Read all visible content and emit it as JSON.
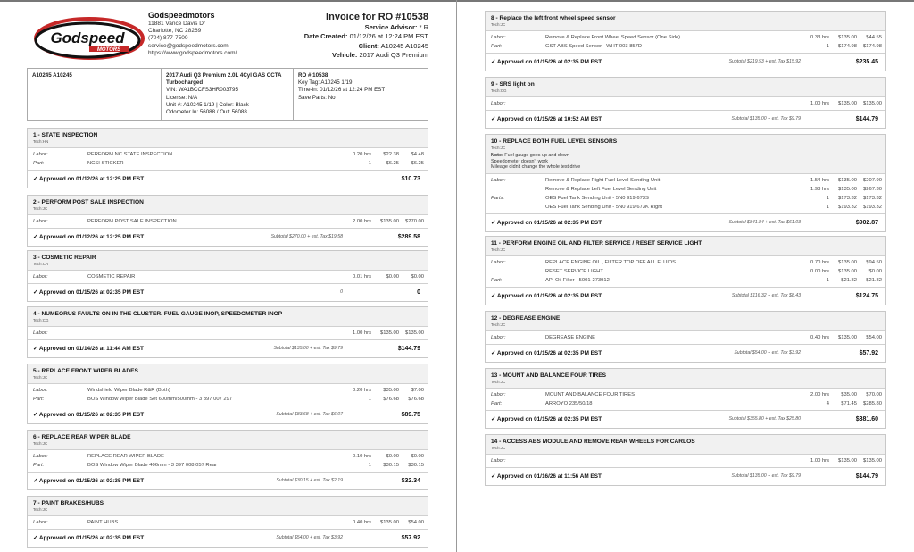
{
  "company": {
    "logo_text": "Godspeed",
    "logo_subtext": "MOTORS",
    "name": "Godspeedmotors",
    "address1": "11881 Vance Davis Dr",
    "address2": "Charlotte, NC 28269",
    "phone": "(704) 877-7500",
    "email": "service@godspeedmotors.com",
    "website": "https://www.godspeedmotors.com/"
  },
  "invoice": {
    "title": "Invoice for RO #10538",
    "advisor_label": "Service Advisor:",
    "advisor": "* R",
    "date_label": "Date Created:",
    "date": "01/12/26 at 12:24 PM EST",
    "client_label": "Client:",
    "client": "A10245 A10245",
    "vehicle_label": "Vehicle:",
    "vehicle": "2017 Audi Q3 Premium"
  },
  "info": {
    "customer": "A10245 A10245",
    "vehicle_title": "2017 Audi Q3 Premium 2.0L 4Cyl GAS CCTA Turbocharged",
    "vin": "VIN: WA1BCCFS3HR003795",
    "license": "License: N/A",
    "unit": "Unit #: A10245 1/19 | Color: Black",
    "odometer": "Odometer In: 56088 / Out: 56088",
    "ro": "RO # 10538",
    "key_tag": "Key Tag: A10245 1/19",
    "time_in": "Time-In: 01/12/26 at 12:24 PM EST",
    "save_parts": "Save Parts: No"
  },
  "jobs": [
    {
      "title": "1 - STATE INSPECTION",
      "tech": "Tech:HN",
      "lines": [
        {
          "label": "Labor:",
          "desc": "PERFORM NC STATE INSPECTION",
          "qty": "0.20 hrs",
          "rate": "$22.38",
          "total": "$4.48"
        },
        {
          "label": "Part:",
          "desc": "NCSI STICKER",
          "qty": "1",
          "rate": "$6.25",
          "total": "$6.25"
        }
      ],
      "approved": "✓ Approved on 01/12/26 at 12:25 PM EST",
      "subtotal": "",
      "grand": "$10.73"
    },
    {
      "title": "2 - PERFORM POST SALE INSPECTION",
      "tech": "Tech:JC",
      "lines": [
        {
          "label": "Labor:",
          "desc": "PERFORM POST SALE INSPECTION",
          "qty": "2.00 hrs",
          "rate": "$135.00",
          "total": "$270.00"
        }
      ],
      "approved": "✓ Approved on 01/12/26 at 12:25 PM EST",
      "subtotal": "Subtotal $270.00 + est. Tax $19.58",
      "grand": "$289.58"
    },
    {
      "title": "3 - COSMETIC REPAIR",
      "tech": "Tech:CR",
      "lines": [
        {
          "label": "Labor:",
          "desc": "COSMETIC REPAIR",
          "qty": "0.01 hrs",
          "rate": "$0.00",
          "total": "$0.00"
        }
      ],
      "approved": "✓ Approved on 01/15/26 at 02:35 PM EST",
      "subtotal": "0",
      "grand": "0"
    },
    {
      "title": "4 - NUMEORUS FAULTS ON IN THE CLUSTER. FUEL GAUGE INOP, SPEEDOMETER INOP",
      "tech": "Tech:CG",
      "lines": [
        {
          "label": "Labor:",
          "desc": "",
          "qty": "1.00 hrs",
          "rate": "$135.00",
          "total": "$135.00"
        }
      ],
      "approved": "✓ Approved on 01/14/26 at 11:44 AM EST",
      "subtotal": "Subtotal $135.00 + est. Tax $9.79",
      "grand": "$144.79"
    },
    {
      "title": "5 - REPLACE FRONT WIPER BLADES",
      "tech": "Tech:JC",
      "lines": [
        {
          "label": "Labor:",
          "desc": "Windshield Wiper Blade R&R (Both)",
          "qty": "0.20 hrs",
          "rate": "$35.00",
          "total": "$7.00"
        },
        {
          "label": "Part:",
          "desc": "BOS Window Wiper Blade Set 600mm/500mm - 3 397 007 297",
          "qty": "1",
          "rate": "$76.68",
          "total": "$76.68"
        }
      ],
      "approved": "✓ Approved on 01/15/26 at 02:35 PM EST",
      "subtotal": "Subtotal $83.68 + est. Tax $6.07",
      "grand": "$89.75"
    },
    {
      "title": "6 - REPLACE REAR WIPER BLADE",
      "tech": "Tech:JC",
      "lines": [
        {
          "label": "Labor:",
          "desc": "REPLACE REAR WIPER BLADE",
          "qty": "0.10 hrs",
          "rate": "$0.00",
          "total": "$0.00"
        },
        {
          "label": "Part:",
          "desc": "BOS Window Wiper Blade 406mm - 3 397 008 057 Rear",
          "qty": "1",
          "rate": "$30.15",
          "total": "$30.15"
        }
      ],
      "approved": "✓ Approved on 01/15/26 at 02:35 PM EST",
      "subtotal": "Subtotal $30.15 + est. Tax $2.19",
      "grand": "$32.34"
    },
    {
      "title": "7 - PAINT BRAKES/HUBS",
      "tech": "Tech:JC",
      "lines": [
        {
          "label": "Labor:",
          "desc": "PAINT HUBS",
          "qty": "0.40 hrs",
          "rate": "$135.00",
          "total": "$54.00"
        }
      ],
      "approved": "✓ Approved on 01/15/26 at 02:35 PM EST",
      "subtotal": "Subtotal $54.00 + est. Tax $3.92",
      "grand": "$57.92"
    },
    {
      "title": "8 - Replace the left front wheel speed sensor",
      "tech": "Tech:JC",
      "lines": [
        {
          "label": "Labor:",
          "desc": "Remove & Replace Front Wheel Speed Sensor (One Side)",
          "qty": "0.33 hrs",
          "rate": "$135.00",
          "total": "$44.55"
        },
        {
          "label": "Part:",
          "desc": "GST ABS Speed Sensor - WHT 003 857D",
          "qty": "1",
          "rate": "$174.98",
          "total": "$174.98"
        }
      ],
      "approved": "✓ Approved on 01/15/26 at 02:35 PM EST",
      "subtotal": "Subtotal $219.53 + est. Tax $15.92",
      "grand": "$235.45"
    },
    {
      "title": "9 - SRS light on",
      "tech": "Tech:CG",
      "lines": [
        {
          "label": "Labor:",
          "desc": "",
          "qty": "1.00 hrs",
          "rate": "$135.00",
          "total": "$135.00"
        }
      ],
      "approved": "✓ Approved on 01/15/26 at 10:52 AM EST",
      "subtotal": "Subtotal $135.00 + est. Tax $9.79",
      "grand": "$144.79"
    },
    {
      "title": "10 - REPLACE BOTH FUEL LEVEL SENSORS",
      "tech": "Tech:JC",
      "note_label": "Note:",
      "note": [
        "Fuel gauge goes up and down",
        "Speedometer doesn't work",
        "Mileage didn't change the whole test drive"
      ],
      "lines": [
        {
          "label": "Labor:",
          "desc": "Remove & Replace Right Fuel Level Sending Unit",
          "qty": "1.54 hrs",
          "rate": "$135.00",
          "total": "$207.90"
        },
        {
          "label": "",
          "desc": "Remove & Replace Left Fuel Level Sending Unit",
          "qty": "1.98 hrs",
          "rate": "$135.00",
          "total": "$267.30"
        },
        {
          "label": "Parts:",
          "desc": "OES Fuel Tank Sending Unit - 5N0 919 673S",
          "qty": "1",
          "rate": "$173.32",
          "total": "$173.32"
        },
        {
          "label": "",
          "desc": "OES Fuel Tank Sending Unit - 5N0 919 673K Right",
          "qty": "1",
          "rate": "$193.32",
          "total": "$193.32"
        }
      ],
      "approved": "✓ Approved on 01/15/26 at 02:35 PM EST",
      "subtotal": "Subtotal $841.84 + est. Tax $61.03",
      "grand": "$902.87"
    },
    {
      "title": "11 - PERFORM ENGINE OIL AND FILTER SERVICE / RESET SERVICE LIGHT",
      "tech": "Tech:JC",
      "lines": [
        {
          "label": "Labor:",
          "desc": "REPLACE ENGINE OIL , FILTER TOP OFF ALL FLUIDS",
          "qty": "0.70 hrs",
          "rate": "$135.00",
          "total": "$94.50"
        },
        {
          "label": "",
          "desc": "RESET SERVICE LIGHT",
          "qty": "0.00 hrs",
          "rate": "$135.00",
          "total": "$0.00"
        },
        {
          "label": "Part:",
          "desc": "API Oil Filter - 5001-273912",
          "qty": "1",
          "rate": "$21.82",
          "total": "$21.82"
        }
      ],
      "approved": "✓ Approved on 01/15/26 at 02:35 PM EST",
      "subtotal": "Subtotal $116.32 + est. Tax $8.43",
      "grand": "$124.75"
    },
    {
      "title": "12 - DEGREASE ENGINE",
      "tech": "Tech:JC",
      "lines": [
        {
          "label": "Labor:",
          "desc": "DEGREASE ENGINE",
          "qty": "0.40 hrs",
          "rate": "$135.00",
          "total": "$54.00"
        }
      ],
      "approved": "✓ Approved on 01/15/26 at 02:35 PM EST",
      "subtotal": "Subtotal $54.00 + est. Tax $3.92",
      "grand": "$57.92"
    },
    {
      "title": "13 - MOUNT AND BALANCE FOUR TIRES",
      "tech": "Tech:JC",
      "lines": [
        {
          "label": "Labor:",
          "desc": "MOUNT AND BALANCE FOUR TIRES",
          "qty": "2.00 hrs",
          "rate": "$35.00",
          "total": "$70.00"
        },
        {
          "label": "Part:",
          "desc": "ARROYO 235/50/18",
          "qty": "4",
          "rate": "$71.45",
          "total": "$285.80"
        }
      ],
      "approved": "✓ Approved on 01/15/26 at 02:35 PM EST",
      "subtotal": "Subtotal $355.80 + est. Tax $25.80",
      "grand": "$381.60"
    },
    {
      "title": "14 - ACCESS ABS MODULE AND REMOVE REAR WHEELS FOR CARLOS",
      "tech": "Tech:JC",
      "lines": [
        {
          "label": "Labor:",
          "desc": "",
          "qty": "1.00 hrs",
          "rate": "$135.00",
          "total": "$135.00"
        }
      ],
      "approved": "✓ Approved on 01/16/26 at 11:56 AM EST",
      "subtotal": "Subtotal $135.00 + est. Tax $9.79",
      "grand": "$144.79"
    }
  ]
}
